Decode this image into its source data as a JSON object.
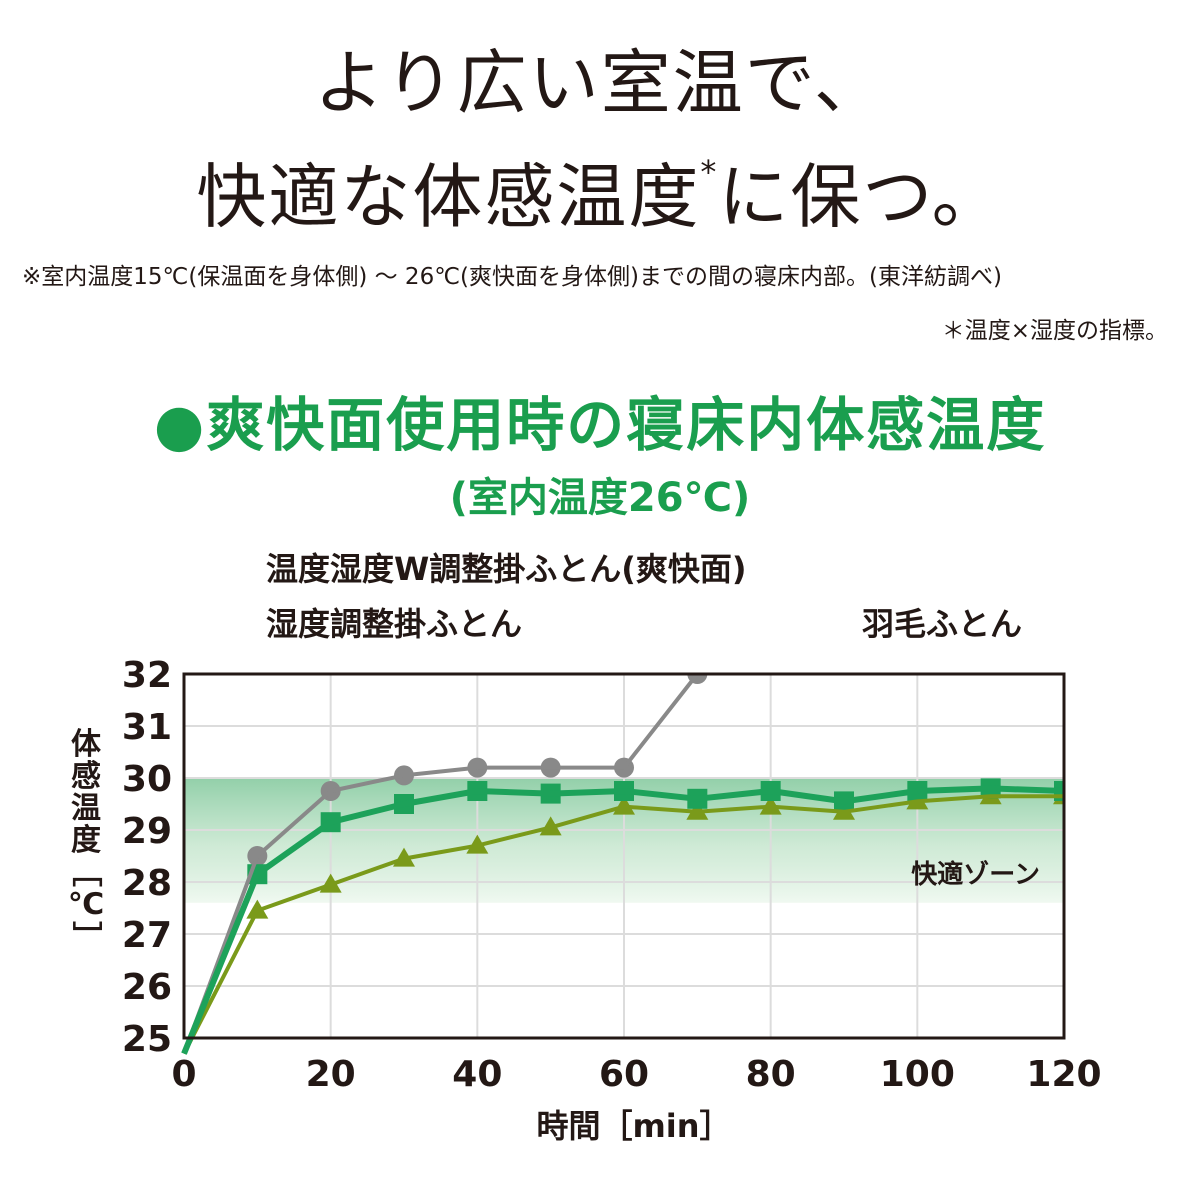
{
  "headline": {
    "line1": "より広い室温で、",
    "line2_main": "快適な体感温度",
    "line2_mark": "*",
    "line2_end": "に保つ。"
  },
  "notes": {
    "note1": "※室内温度15℃(保温面を身体側) 〜 26℃(爽快面を身体側)までの間の寝床内部。(東洋紡調べ)",
    "note2": "＊温度×湿度の指標。"
  },
  "section": {
    "bullet": "●",
    "title": "爽快面使用時の寝床内体感温度",
    "subtitle": "(室内温度26℃)"
  },
  "legend": {
    "w_futon": "温度湿度W調整掛ふとん(爽快面)",
    "humidity_futon": "湿度調整掛ふとん",
    "down_futon": "羽毛ふとん"
  },
  "chart_data": {
    "type": "line",
    "x": [
      0,
      10,
      20,
      30,
      40,
      50,
      60,
      70,
      80,
      90,
      100,
      110,
      120
    ],
    "xlabel": "時間［min］",
    "ylabel": "体感温度［℃］",
    "xlim": [
      0,
      120
    ],
    "ylim": [
      25,
      32
    ],
    "x_ticks": [
      0,
      20,
      40,
      60,
      80,
      100,
      120
    ],
    "y_ticks": [
      25,
      26,
      27,
      28,
      29,
      30,
      31,
      32
    ],
    "grid": true,
    "comfort_zone": {
      "label": "快適ゾーン",
      "range": [
        27.6,
        30.0
      ]
    },
    "series": [
      {
        "name": "羽毛ふとん",
        "color": "#898989",
        "marker": "circle",
        "x": [
          0,
          10,
          20,
          30,
          40,
          50,
          60,
          70
        ],
        "values": [
          24.7,
          28.5,
          29.75,
          30.05,
          30.2,
          30.2,
          30.2,
          32.0
        ]
      },
      {
        "name": "温度湿度W調整掛ふとん(爽快面)",
        "color": "#1da25a",
        "marker": "square",
        "x": [
          0,
          10,
          20,
          30,
          40,
          50,
          60,
          70,
          80,
          90,
          100,
          110,
          120
        ],
        "values": [
          24.7,
          28.15,
          29.15,
          29.5,
          29.75,
          29.7,
          29.75,
          29.6,
          29.75,
          29.55,
          29.75,
          29.8,
          29.75
        ]
      },
      {
        "name": "湿度調整掛ふとん",
        "color": "#7a9a1a",
        "marker": "triangle",
        "x": [
          0,
          10,
          20,
          30,
          40,
          50,
          60,
          70,
          80,
          90,
          100,
          110,
          120
        ],
        "values": [
          24.7,
          27.45,
          27.95,
          28.45,
          28.7,
          29.05,
          29.45,
          29.35,
          29.45,
          29.35,
          29.55,
          29.65,
          29.65
        ]
      }
    ]
  }
}
